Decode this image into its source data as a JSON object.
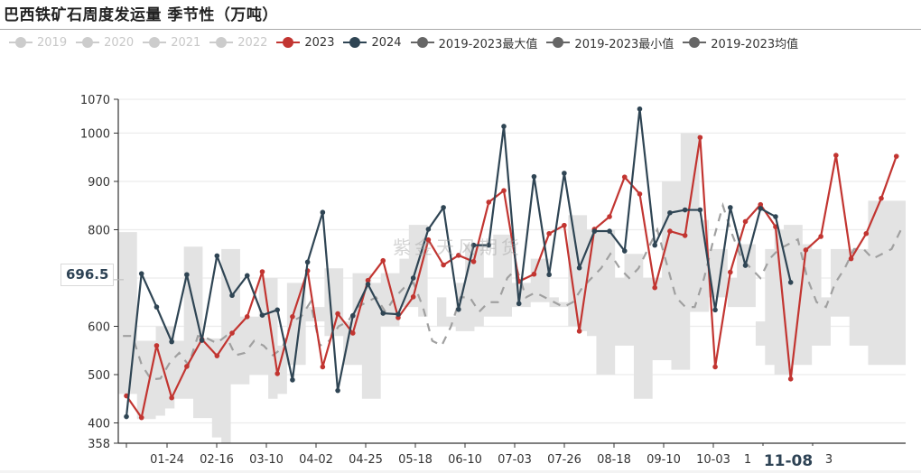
{
  "header": {
    "title": "巴西铁矿石周度发运量 季节性（万吨）"
  },
  "legend": [
    {
      "label": "2019",
      "color": "#cccccc",
      "active": false
    },
    {
      "label": "2020",
      "color": "#cccccc",
      "active": false
    },
    {
      "label": "2021",
      "color": "#cccccc",
      "active": false
    },
    {
      "label": "2022",
      "color": "#cccccc",
      "active": false
    },
    {
      "label": "2023",
      "color": "#c23531",
      "active": true
    },
    {
      "label": "2024",
      "color": "#2f4554",
      "active": true
    },
    {
      "label": "2019-2023最大值",
      "color": "#666666",
      "active": true
    },
    {
      "label": "2019-2023最小值",
      "color": "#666666",
      "active": true
    },
    {
      "label": "2019-2023均值",
      "color": "#666666",
      "active": true
    }
  ],
  "axis_pointer": {
    "y_value": "696.5",
    "x_value": "11-08"
  },
  "watermark": "紫金天风期货",
  "colors": {
    "series_2023": "#c23531",
    "series_2024": "#2f4554",
    "band_fill": "#e3e3e3",
    "mean_dash": "#a0a0a0",
    "grid": "#ececec",
    "axis": "#333333"
  },
  "chart_data": {
    "type": "line",
    "title": "巴西铁矿石周度发运量 季节性（万吨）",
    "xlabel": "",
    "ylabel": "",
    "ylim": [
      358,
      1070
    ],
    "y_ticks": [
      358,
      400,
      500,
      600,
      800,
      900,
      1000,
      1070
    ],
    "y_ticks_all": [
      358,
      400,
      500,
      600,
      700,
      800,
      900,
      1000,
      1070
    ],
    "x_tick_labels": [
      "01-24",
      "02-16",
      "03-10",
      "04-02",
      "04-25",
      "05-18",
      "06-10",
      "07-03",
      "07-26",
      "08-18",
      "09-10",
      "10-03",
      "1",
      "11-08",
      "3"
    ],
    "grid": true,
    "legend_position": "top",
    "series": [
      {
        "name": "2023",
        "color": "#c23531",
        "values": [
          456,
          411,
          560,
          452,
          517,
          573,
          539,
          586,
          620,
          713,
          502,
          620,
          715,
          516,
          626,
          586,
          695,
          736,
          618,
          661,
          779,
          727,
          747,
          734,
          857,
          881,
          693,
          708,
          792,
          809,
          590,
          801,
          827,
          909,
          874,
          680,
          797,
          788,
          991,
          516,
          712,
          817,
          852,
          806,
          491,
          758,
          786,
          954,
          740,
          792,
          865,
          952
        ]
      },
      {
        "name": "2024",
        "color": "#2f4554",
        "values": [
          413,
          709,
          640,
          568,
          707,
          571,
          746,
          664,
          705,
          623,
          634,
          489,
          733,
          836,
          467,
          622,
          687,
          627,
          625,
          700,
          801,
          846,
          635,
          768,
          768,
          1014,
          647,
          910,
          707,
          917,
          721,
          797,
          797,
          756,
          1050,
          768,
          835,
          841,
          841,
          634,
          846,
          726,
          844,
          827,
          691
        ]
      }
    ],
    "band": {
      "name_max": "2019-2023最大值",
      "name_min": "2019-2023最小值",
      "max": [
        795,
        795,
        570,
        570,
        600,
        600,
        570,
        765,
        765,
        575,
        575,
        760,
        760,
        620,
        620,
        700,
        700,
        560,
        690,
        690,
        640,
        640,
        720,
        720,
        610,
        710,
        710,
        690,
        710,
        710,
        740,
        810,
        810,
        620,
        660,
        620,
        690,
        770,
        770,
        700,
        790,
        790,
        690,
        690,
        740,
        740,
        640,
        650,
        830,
        830,
        800,
        800,
        800,
        700,
        750,
        750,
        700,
        700,
        900,
        900,
        1000,
        1000,
        820,
        760,
        760,
        700,
        770,
        770,
        610,
        760,
        800,
        810,
        810,
        770,
        760,
        660,
        760,
        760,
        760,
        760,
        860,
        860,
        860,
        860
      ],
      "min": [
        460,
        460,
        408,
        408,
        415,
        430,
        450,
        450,
        410,
        410,
        370,
        358,
        480,
        480,
        500,
        500,
        450,
        460,
        520,
        520,
        610,
        610,
        580,
        580,
        520,
        520,
        450,
        450,
        600,
        600,
        640,
        640,
        620,
        620,
        600,
        600,
        590,
        590,
        600,
        620,
        620,
        620,
        640,
        640,
        650,
        650,
        660,
        640,
        600,
        590,
        580,
        500,
        500,
        560,
        560,
        450,
        450,
        530,
        530,
        510,
        510,
        630,
        630,
        660,
        660,
        640,
        640,
        640,
        560,
        520,
        500,
        500,
        520,
        520,
        560,
        560,
        620,
        620,
        560,
        560,
        520,
        520,
        520,
        520
      ]
    },
    "mean": {
      "name": "2019-2023均值",
      "values": [
        580,
        580,
        520,
        490,
        492,
        525,
        545,
        520,
        580,
        575,
        565,
        580,
        540,
        545,
        570,
        560,
        540,
        555,
        610,
        620,
        650,
        560,
        570,
        600,
        610,
        640,
        650,
        660,
        630,
        660,
        680,
        690,
        640,
        570,
        560,
        600,
        660,
        660,
        630,
        650,
        650,
        700,
        720,
        660,
        670,
        660,
        650,
        640,
        650,
        680,
        700,
        720,
        750,
        720,
        700,
        720,
        760,
        800,
        730,
        660,
        640,
        640,
        700,
        780,
        850,
        790,
        740,
        720,
        700,
        740,
        760,
        770,
        780,
        700,
        650,
        640,
        690,
        720,
        760,
        760,
        740,
        750,
        760,
        800
      ]
    }
  }
}
